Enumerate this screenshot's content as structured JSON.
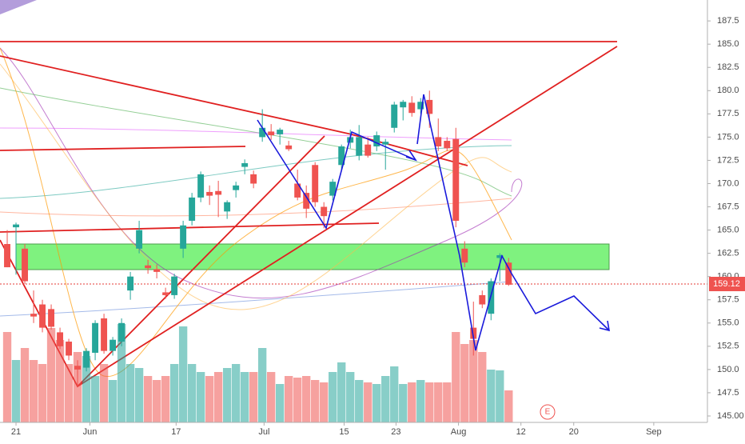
{
  "chart_data": {
    "type": "candlestick",
    "open": [
      163.5,
      165.3,
      163,
      156,
      157,
      156.5,
      154,
      153,
      150.4,
      150.2,
      151.8,
      155.5,
      152,
      153,
      158.5,
      163,
      161.2,
      160.8,
      158.3,
      158,
      163,
      166,
      168.5,
      169.1,
      169.2,
      167,
      169.3,
      171.8,
      171,
      175,
      175.6,
      175.3,
      174.1,
      170,
      169,
      172,
      167.5,
      168.7,
      172,
      174.4,
      173,
      174.2,
      174,
      174.2,
      176,
      178.2,
      178.7,
      178,
      179,
      175,
      174.6,
      174.8,
      163,
      154.5,
      158,
      156,
      162,
      161.5
    ],
    "high": [
      165,
      165.8,
      163.5,
      158.5,
      157.5,
      157,
      154.5,
      153.3,
      151,
      152.3,
      155.3,
      156,
      153.5,
      155.5,
      160.5,
      166,
      161.8,
      161.3,
      158.8,
      160.3,
      166,
      169,
      171.3,
      169.8,
      170.3,
      168.2,
      170.2,
      172.6,
      171.4,
      178,
      176.4,
      176,
      174.6,
      171.5,
      169.8,
      172.3,
      168,
      170.5,
      174.2,
      175.8,
      176.3,
      175,
      175.6,
      174.8,
      178.8,
      179,
      179.4,
      179.2,
      180,
      177,
      175,
      176,
      163.8,
      157.3,
      158.5,
      159.8,
      162.5,
      162
    ],
    "low": [
      161,
      160.2,
      159.2,
      155,
      154,
      154.3,
      152.2,
      151,
      148.2,
      149.8,
      151,
      151.7,
      151.5,
      152.5,
      157.5,
      162.5,
      160.3,
      159.8,
      157.6,
      157.6,
      162,
      165.5,
      168,
      167.7,
      166.4,
      166.2,
      168.5,
      171,
      169.5,
      174.5,
      174.7,
      174.2,
      173.5,
      168.2,
      166.3,
      167.5,
      165.2,
      168.2,
      171.5,
      173.8,
      172.5,
      172.8,
      173.5,
      171.5,
      175.5,
      176.8,
      177.2,
      177.5,
      176,
      173.5,
      173.5,
      165.3,
      161,
      151.5,
      156.6,
      155.3,
      159.5,
      159
    ],
    "close": [
      161,
      165.6,
      159.5,
      155.7,
      154.5,
      154.6,
      152.5,
      151.5,
      150,
      152,
      155,
      152,
      153.2,
      155,
      160,
      165,
      160.9,
      160.5,
      158,
      160,
      165.5,
      168.5,
      171,
      168.7,
      168.8,
      168,
      169.8,
      172.2,
      170,
      176,
      175.2,
      175.8,
      173.7,
      168.5,
      167.3,
      168,
      166.5,
      170.2,
      174,
      175,
      175,
      173,
      175.2,
      174.5,
      178.5,
      178.8,
      177.6,
      178.8,
      177.5,
      174,
      173.8,
      166,
      161.5,
      153.3,
      157,
      159.5,
      162.3,
      159.12
    ],
    "volume": [
      113,
      78,
      93,
      78,
      73,
      118,
      103,
      73,
      88,
      83,
      58,
      73,
      53,
      123,
      73,
      68,
      58,
      53,
      58,
      73,
      120,
      73,
      63,
      58,
      63,
      68,
      73,
      63,
      63,
      93,
      63,
      48,
      58,
      56,
      58,
      53,
      50,
      63,
      75,
      63,
      53,
      50,
      48,
      58,
      70,
      48,
      50,
      53,
      50,
      50,
      50,
      113,
      98,
      103,
      88,
      66,
      65,
      40
    ],
    "up_color": "#26a69a",
    "down_color": "#ef5350",
    "last_price": 159.12,
    "earnings_marker": "E",
    "xlim": [
      -0.82,
      79.6
    ],
    "xticks": [
      {
        "value": 1,
        "label": "21"
      },
      {
        "value": 9.4,
        "label": "Jun"
      },
      {
        "value": 19.2,
        "label": "17"
      },
      {
        "value": 29.2,
        "label": "Jul"
      },
      {
        "value": 38.3,
        "label": "15"
      },
      {
        "value": 44.2,
        "label": "23"
      },
      {
        "value": 51.3,
        "label": "Aug"
      },
      {
        "value": 58.4,
        "label": "12"
      },
      {
        "value": 64.4,
        "label": "20"
      },
      {
        "value": 73.5,
        "label": "Sep"
      }
    ],
    "ylim": [
      144.31,
      189.75
    ],
    "yticks": [
      {
        "value": 145,
        "label": "145.00"
      },
      147.5,
      {
        "value": 150,
        "label": "150.0"
      },
      152.5,
      {
        "value": 155,
        "label": "155.0"
      },
      157.5,
      {
        "value": 160,
        "label": "160.0"
      },
      162.5,
      {
        "value": 165,
        "label": "165.0"
      },
      167.5,
      {
        "value": 170,
        "label": "170.0"
      },
      172.5,
      {
        "value": 175,
        "label": "175.0"
      },
      177.5,
      {
        "value": 180,
        "label": "180.0"
      },
      182.5,
      {
        "value": 185,
        "label": "185.0"
      },
      187.5
    ]
  }
}
